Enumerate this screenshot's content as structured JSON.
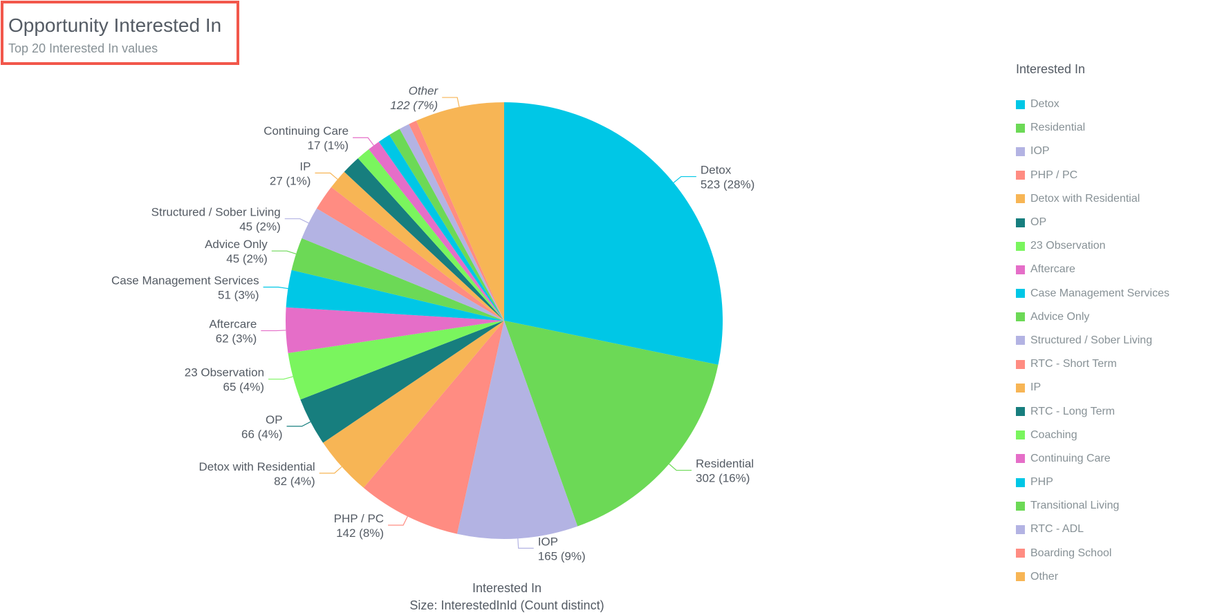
{
  "header": {
    "title": "Opportunity Interested In",
    "subtitle": "Top 20 Interested In values"
  },
  "chart_data": {
    "type": "pie",
    "legend_title": "Interested In",
    "legend_position": "right",
    "caption_line1": "Interested In",
    "caption_line2": "Size: InterestedInId (Count distinct)",
    "slices": [
      {
        "label": "Detox",
        "value": 523,
        "pct": "28%",
        "color": "#00c7e6"
      },
      {
        "label": "Residential",
        "value": 302,
        "pct": "16%",
        "color": "#6cd956"
      },
      {
        "label": "IOP",
        "value": 165,
        "pct": "9%",
        "color": "#b3b3e3"
      },
      {
        "label": "PHP / PC",
        "value": 142,
        "pct": "8%",
        "color": "#ff8c82"
      },
      {
        "label": "Detox with Residential",
        "value": 82,
        "pct": "4%",
        "color": "#f7b555"
      },
      {
        "label": "OP",
        "value": 66,
        "pct": "4%",
        "color": "#177e7e"
      },
      {
        "label": "23 Observation",
        "value": 65,
        "pct": "4%",
        "color": "#7af55e"
      },
      {
        "label": "Aftercare",
        "value": 62,
        "pct": "3%",
        "color": "#e56ec8"
      },
      {
        "label": "Case Management Services",
        "value": 51,
        "pct": "3%",
        "color": "#00c7e6"
      },
      {
        "label": "Advice Only",
        "value": 45,
        "pct": "2%",
        "color": "#6cd956"
      },
      {
        "label": "Structured / Sober Living",
        "value": 45,
        "pct": "2%",
        "color": "#b3b3e3"
      },
      {
        "label": "RTC - Short Term",
        "value": 35,
        "pct": "",
        "color": "#ff8c82"
      },
      {
        "label": "IP",
        "value": 27,
        "pct": "1%",
        "color": "#f7b555"
      },
      {
        "label": "RTC - Long Term",
        "value": 26,
        "pct": "",
        "color": "#177e7e"
      },
      {
        "label": "Coaching",
        "value": 19,
        "pct": "",
        "color": "#7af55e"
      },
      {
        "label": "Continuing Care",
        "value": 17,
        "pct": "1%",
        "color": "#e56ec8"
      },
      {
        "label": "PHP",
        "value": 17,
        "pct": "",
        "color": "#00c7e6"
      },
      {
        "label": "Transitional Living",
        "value": 16,
        "pct": "",
        "color": "#6cd956"
      },
      {
        "label": "RTC - ADL",
        "value": 14,
        "pct": "",
        "color": "#b3b3e3"
      },
      {
        "label": "Boarding School",
        "value": 11,
        "pct": "",
        "color": "#ff8c82"
      },
      {
        "label": "Other",
        "value": 122,
        "pct": "7%",
        "color": "#f7b555",
        "italic": true
      }
    ]
  }
}
